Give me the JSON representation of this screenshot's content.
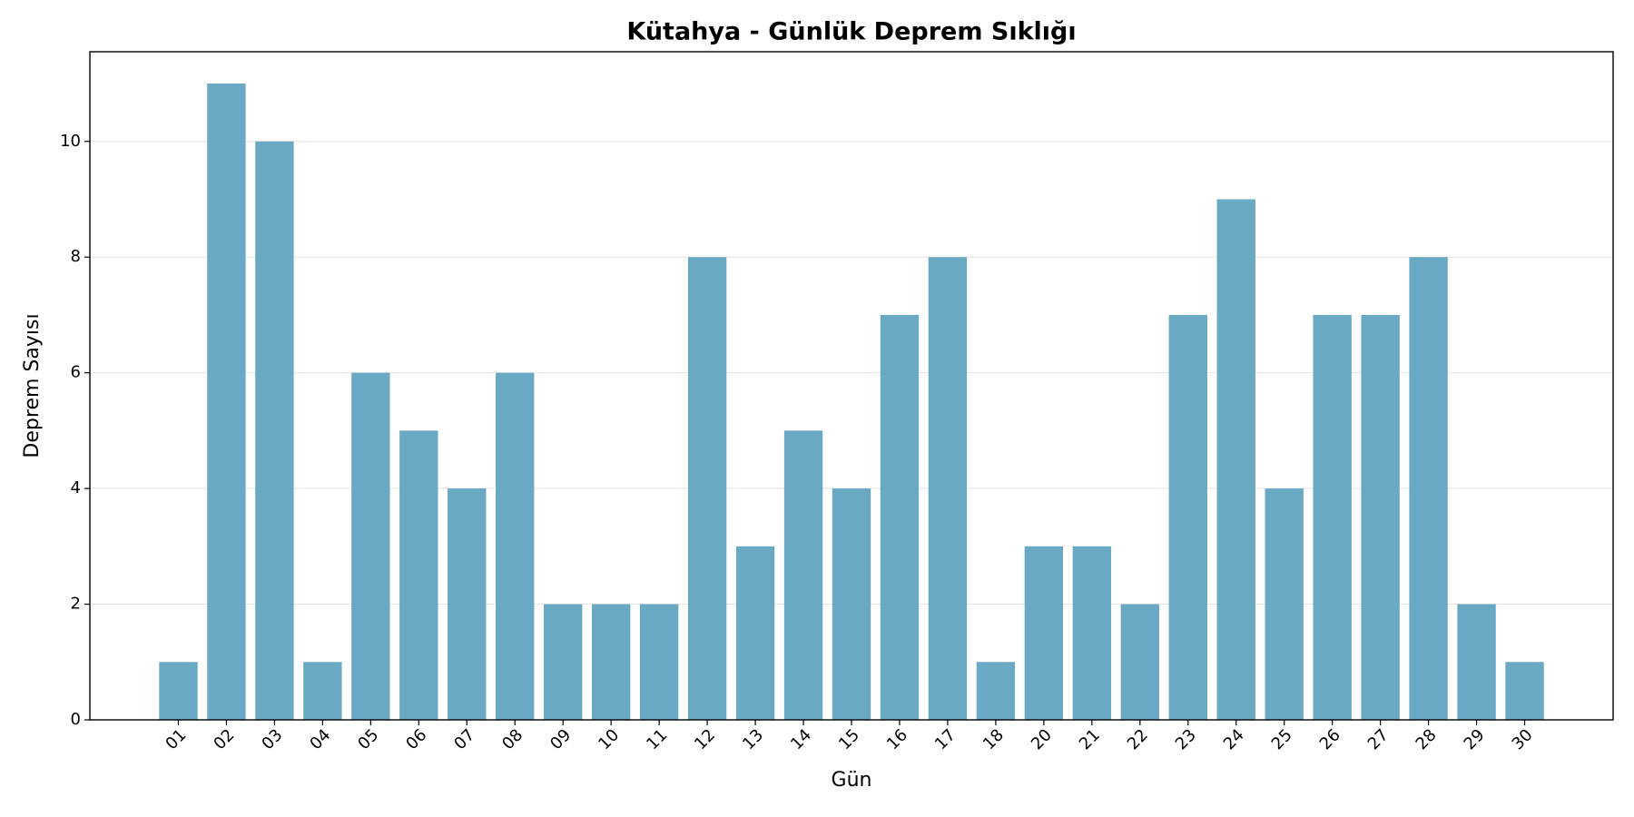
{
  "chart_data": {
    "type": "bar",
    "title": "Kütahya - Günlük Deprem Sıklığı",
    "x_label": "Gün",
    "y_label": "Deprem Sayısı",
    "categories": [
      "01",
      "02",
      "03",
      "04",
      "05",
      "06",
      "07",
      "08",
      "09",
      "10",
      "11",
      "12",
      "13",
      "14",
      "15",
      "16",
      "17",
      "18",
      "20",
      "21",
      "22",
      "23",
      "24",
      "25",
      "26",
      "27",
      "28",
      "29",
      "30"
    ],
    "values": [
      1,
      11,
      10,
      1,
      6,
      5,
      4,
      6,
      2,
      2,
      2,
      8,
      3,
      5,
      4,
      7,
      8,
      1,
      3,
      3,
      2,
      7,
      9,
      4,
      7,
      7,
      8,
      2,
      1
    ],
    "color": "#6aa9c4",
    "ylim": [
      0,
      11.55
    ],
    "yticks": [
      0,
      2,
      4,
      6,
      8,
      10
    ],
    "grid": true
  }
}
